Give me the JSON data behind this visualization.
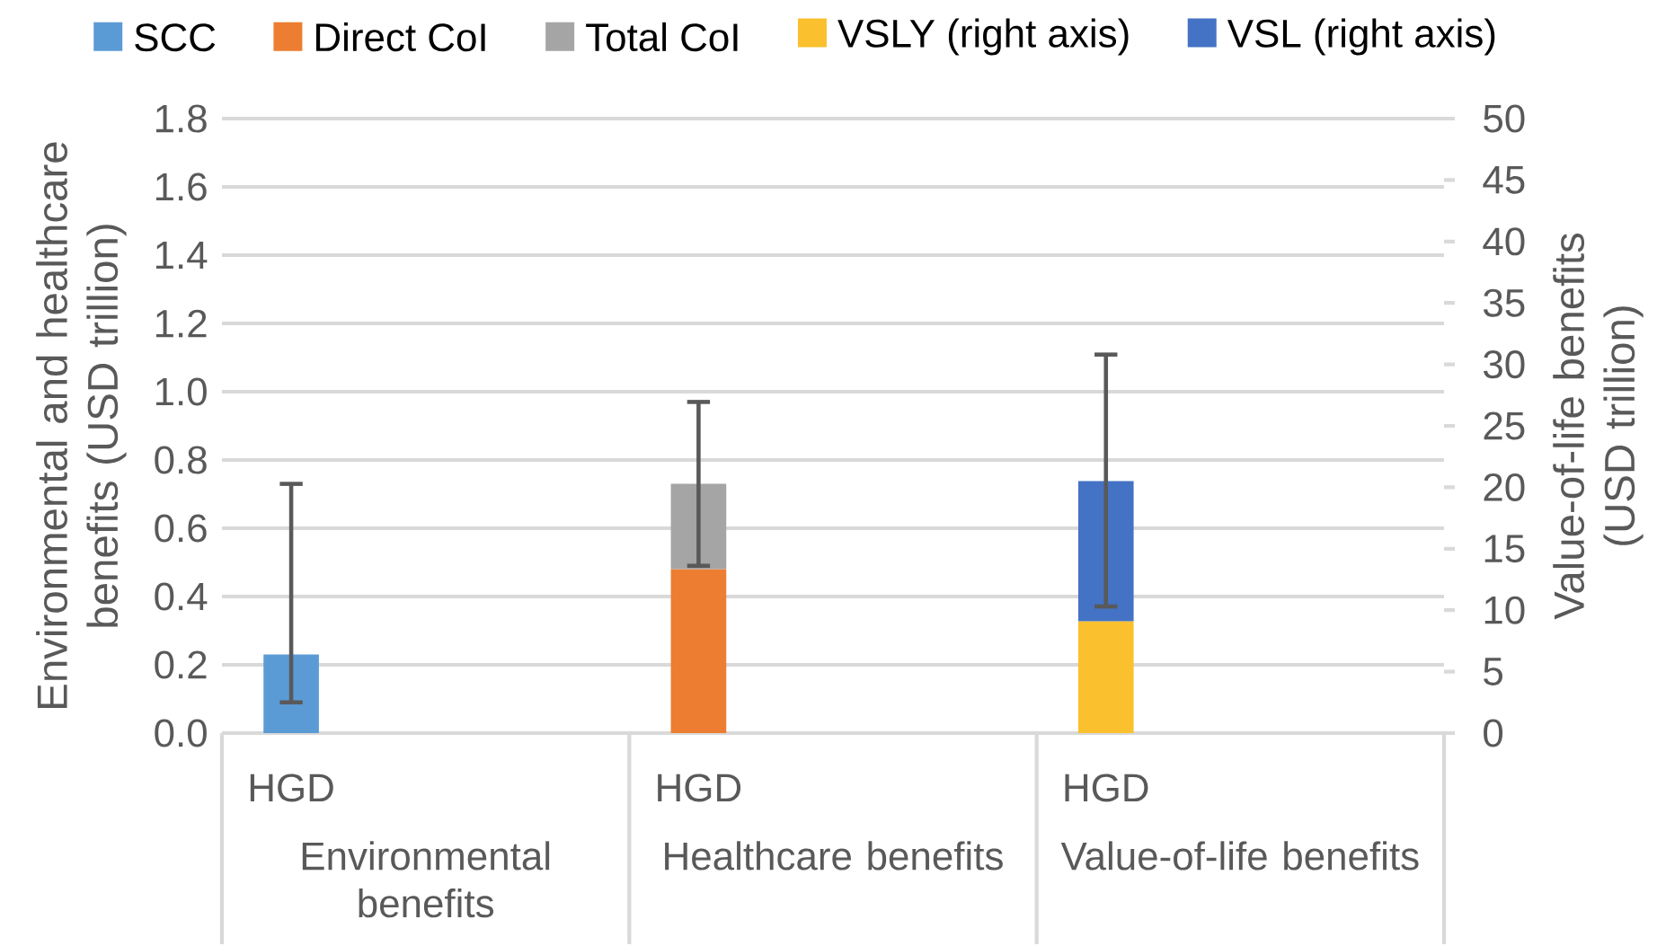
{
  "chart_data": {
    "type": "bar",
    "stacked": true,
    "categories": [
      "HGD",
      "HGD",
      "HGD"
    ],
    "series": [
      {
        "name": "SCC",
        "color": "#5b9bd5",
        "values": [
          0.23,
          null,
          null
        ],
        "errors": [
          [
            0.09,
            0.73
          ],
          null,
          null
        ]
      },
      {
        "name": "Direct CoI",
        "color": "#ed7d31",
        "values": [
          null,
          0.48,
          null
        ]
      },
      {
        "name": "Total CoI",
        "color": "#a5a5a5",
        "values": [
          null,
          0.25,
          null
        ],
        "errors": [
          null,
          [
            0.49,
            0.97
          ],
          null
        ]
      },
      {
        "name": "VSLY (right axis)",
        "color": "#fbc02d",
        "axis": "y2",
        "values": [
          null,
          null,
          9.1
        ]
      },
      {
        "name": "VSL (right axis)",
        "color": "#4472c4",
        "axis": "y2",
        "values": [
          null,
          null,
          11.4
        ],
        "errors": [
          null,
          null,
          [
            10.3,
            30.8
          ]
        ]
      }
    ],
    "ylabel": "Environmental and healthcare benefits (USD trillion)",
    "y2label": "Value-of-life benefits (USD trillion)",
    "ylim": [
      0,
      1.8
    ],
    "yticks": [
      {
        "value": 0,
        "label": "0.0"
      },
      {
        "value": 0.2,
        "label": "0.2"
      },
      {
        "value": 0.4,
        "label": "0.4"
      },
      {
        "value": 0.6,
        "label": "0.6"
      },
      {
        "value": 0.8,
        "label": "0.8"
      },
      {
        "value": 1.0,
        "label": "1.0"
      },
      {
        "value": 1.2,
        "label": "1.2"
      },
      {
        "value": 1.4,
        "label": "1.4"
      },
      {
        "value": 1.6,
        "label": "1.6"
      },
      {
        "value": 1.8,
        "label": "1.8"
      }
    ],
    "y2lim": [
      0,
      50
    ],
    "y2ticks": [
      0,
      5,
      10,
      15,
      20,
      25,
      30,
      35,
      40,
      45,
      50
    ],
    "annotations": [
      "Environmental benefits",
      "Healthcare benefits",
      "Value-of-life benefits"
    ],
    "grid": "y",
    "legend": "top"
  }
}
